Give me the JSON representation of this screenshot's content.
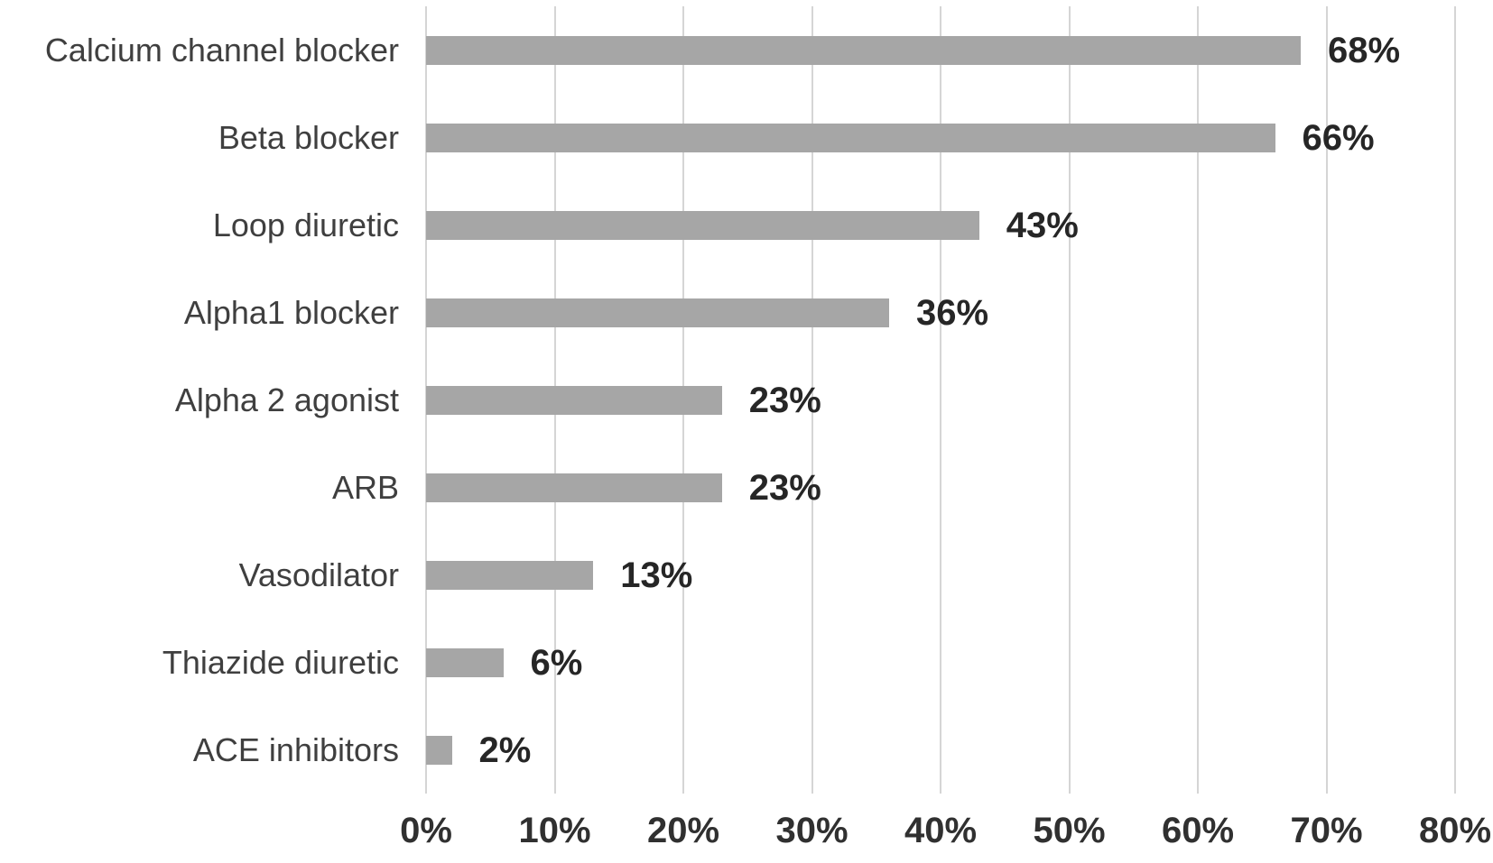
{
  "chart_data": {
    "type": "bar",
    "orientation": "horizontal",
    "title": "",
    "xlabel": "",
    "ylabel": "",
    "categories": [
      "Calcium channel blocker",
      "Beta blocker",
      "Loop diuretic",
      "Alpha1 blocker",
      "Alpha 2 agonist",
      "ARB",
      "Vasodilator",
      "Thiazide diuretic",
      "ACE inhibitors"
    ],
    "values": [
      68,
      66,
      43,
      36,
      23,
      23,
      13,
      6,
      2
    ],
    "data_labels": [
      "68%",
      "66%",
      "43%",
      "36%",
      "23%",
      "23%",
      "13%",
      "6%",
      "2%"
    ],
    "xlim": [
      0,
      80
    ],
    "x_tick_values": [
      0,
      10,
      20,
      30,
      40,
      50,
      60,
      70,
      80
    ],
    "x_tick_labels": [
      "0%",
      "10%",
      "20%",
      "30%",
      "40%",
      "50%",
      "60%",
      "70%",
      "80%"
    ],
    "grid": "vertical-only",
    "legend": "none",
    "colors": {
      "bar": "#a6a6a6",
      "gridline": "#d5d5d5",
      "category_label": "#3f3f3f",
      "data_label": "#262626",
      "axis_label": "#303030",
      "background": "#ffffff"
    }
  }
}
